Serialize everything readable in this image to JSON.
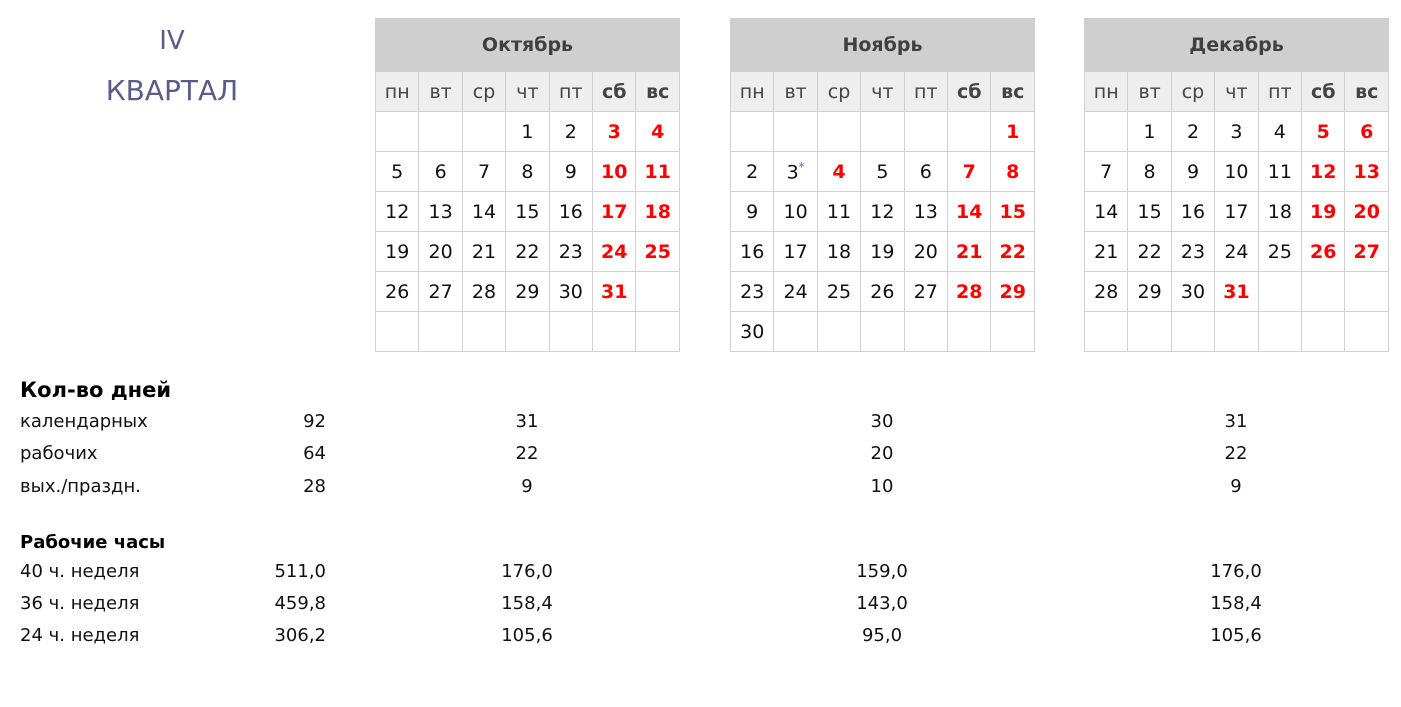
{
  "quarter": {
    "roman": "IV",
    "label": "КВАРТАЛ"
  },
  "weekdays": [
    "пн",
    "вт",
    "ср",
    "чт",
    "пт",
    "сб",
    "вс"
  ],
  "months": [
    {
      "name": "Октябрь",
      "offset": 3,
      "days": 31,
      "holidays": [
        3,
        4,
        10,
        11,
        17,
        18,
        24,
        25,
        31
      ],
      "marked": []
    },
    {
      "name": "Ноябрь",
      "offset": 6,
      "days": 30,
      "holidays": [
        1,
        4,
        7,
        8,
        14,
        15,
        21,
        22,
        28,
        29
      ],
      "marked": [
        3
      ],
      "mark_symbol": "*"
    },
    {
      "name": "Декабрь",
      "offset": 1,
      "days": 31,
      "holidays": [
        5,
        6,
        12,
        13,
        19,
        20,
        26,
        27,
        31
      ],
      "marked": []
    }
  ],
  "days_section": {
    "title": "Кол-во дней",
    "rows": [
      {
        "label": "календарных",
        "quarter": "92",
        "months": [
          "31",
          "30",
          "31"
        ]
      },
      {
        "label": "рабочих",
        "quarter": "64",
        "months": [
          "22",
          "20",
          "22"
        ]
      },
      {
        "label": "вых./праздн.",
        "quarter": "28",
        "months": [
          "9",
          "10",
          "9"
        ]
      }
    ]
  },
  "hours_section": {
    "title": "Рабочие часы",
    "rows": [
      {
        "label": "40 ч. неделя",
        "quarter": "511,0",
        "months": [
          "176,0",
          "159,0",
          "176,0"
        ]
      },
      {
        "label": "36 ч. неделя",
        "quarter": "459,8",
        "months": [
          "158,4",
          "143,0",
          "158,4"
        ]
      },
      {
        "label": "24 ч. неделя",
        "quarter": "306,2",
        "months": [
          "105,6",
          "95,0",
          "105,6"
        ]
      }
    ]
  },
  "colors": {
    "holiday": "#ff0000",
    "header_bg": "#cfcfcf",
    "weekday_bg": "#eeeeee",
    "quarter_text": "#5b5b8a"
  }
}
